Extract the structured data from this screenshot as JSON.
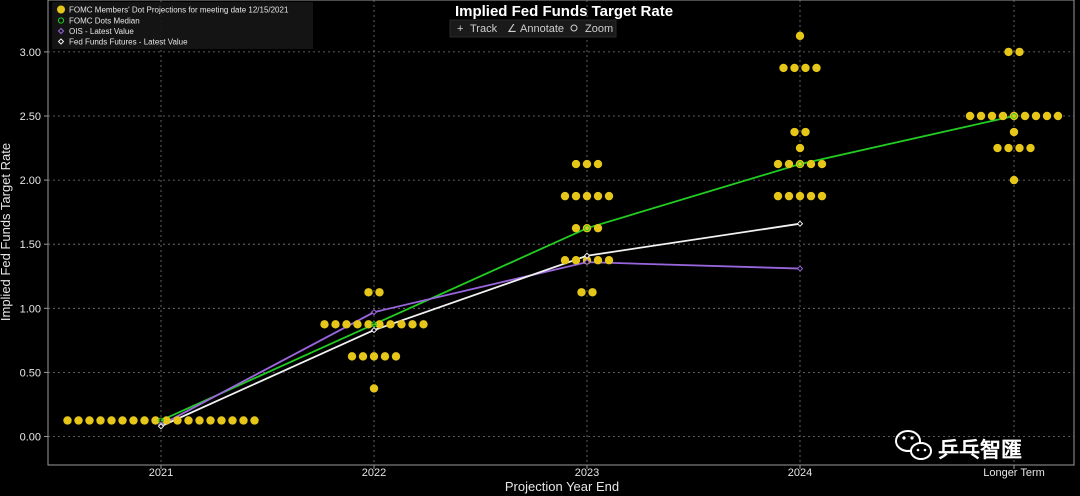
{
  "chart_data": {
    "type": "scatter",
    "title": "Implied Fed Funds Target Rate",
    "xlabel": "Projection Year End",
    "ylabel": "Implied Fed Funds Target Rate",
    "categories": [
      "2021",
      "2022",
      "2023",
      "2024",
      "Longer Term"
    ],
    "yticks": [
      "0.00",
      "0.50",
      "1.00",
      "1.50",
      "2.00",
      "2.50",
      "3.00"
    ],
    "ylim": [
      -0.22,
      3.25
    ],
    "grid": true,
    "legend_position": "top-left",
    "dots": {
      "name": "FOMC Members' Dot Projections for meeting date 12/15/2021",
      "color": "#e6c619",
      "groups": [
        {
          "category": "2021",
          "levels": [
            {
              "value": 0.125,
              "count": 18
            }
          ]
        },
        {
          "category": "2022",
          "levels": [
            {
              "value": 1.125,
              "count": 2
            },
            {
              "value": 0.875,
              "count": 10
            },
            {
              "value": 0.625,
              "count": 5
            },
            {
              "value": 0.375,
              "count": 1
            }
          ]
        },
        {
          "category": "2023",
          "levels": [
            {
              "value": 2.125,
              "count": 3
            },
            {
              "value": 1.875,
              "count": 5
            },
            {
              "value": 1.625,
              "count": 3
            },
            {
              "value": 1.375,
              "count": 5
            },
            {
              "value": 1.125,
              "count": 2
            }
          ]
        },
        {
          "category": "2024",
          "levels": [
            {
              "value": 3.125,
              "count": 1
            },
            {
              "value": 2.875,
              "count": 4
            },
            {
              "value": 2.375,
              "count": 2
            },
            {
              "value": 2.25,
              "count": 1
            },
            {
              "value": 2.125,
              "count": 5
            },
            {
              "value": 1.875,
              "count": 5
            }
          ]
        },
        {
          "category": "Longer Term",
          "levels": [
            {
              "value": 3.0,
              "count": 2
            },
            {
              "value": 2.5,
              "count": 9
            },
            {
              "value": 2.375,
              "count": 1
            },
            {
              "value": 2.25,
              "count": 4
            },
            {
              "value": 2.0,
              "count": 1
            }
          ]
        }
      ]
    },
    "series": [
      {
        "name": "FOMC Dots Median",
        "color": "#22cc22",
        "x": [
          "2021",
          "2022",
          "2023",
          "2024",
          "Longer Term"
        ],
        "values": [
          0.125,
          0.875,
          1.625,
          2.125,
          2.5
        ]
      },
      {
        "name": "OIS - Latest Value",
        "color": "#9966dd",
        "x": [
          "2021",
          "2022",
          "2023",
          "2024"
        ],
        "values": [
          0.09,
          0.97,
          1.36,
          1.31
        ]
      },
      {
        "name": "Fed Funds Futures - Latest Value",
        "color": "#f2f2f2",
        "x": [
          "2021",
          "2022",
          "2023",
          "2024"
        ],
        "values": [
          0.08,
          0.83,
          1.41,
          1.66
        ]
      }
    ]
  },
  "toolbar": {
    "track_label": "Track",
    "annotate_label": "Annotate",
    "zoom_label": "Zoom"
  },
  "watermark": {
    "text": "乒乓智匯"
  }
}
